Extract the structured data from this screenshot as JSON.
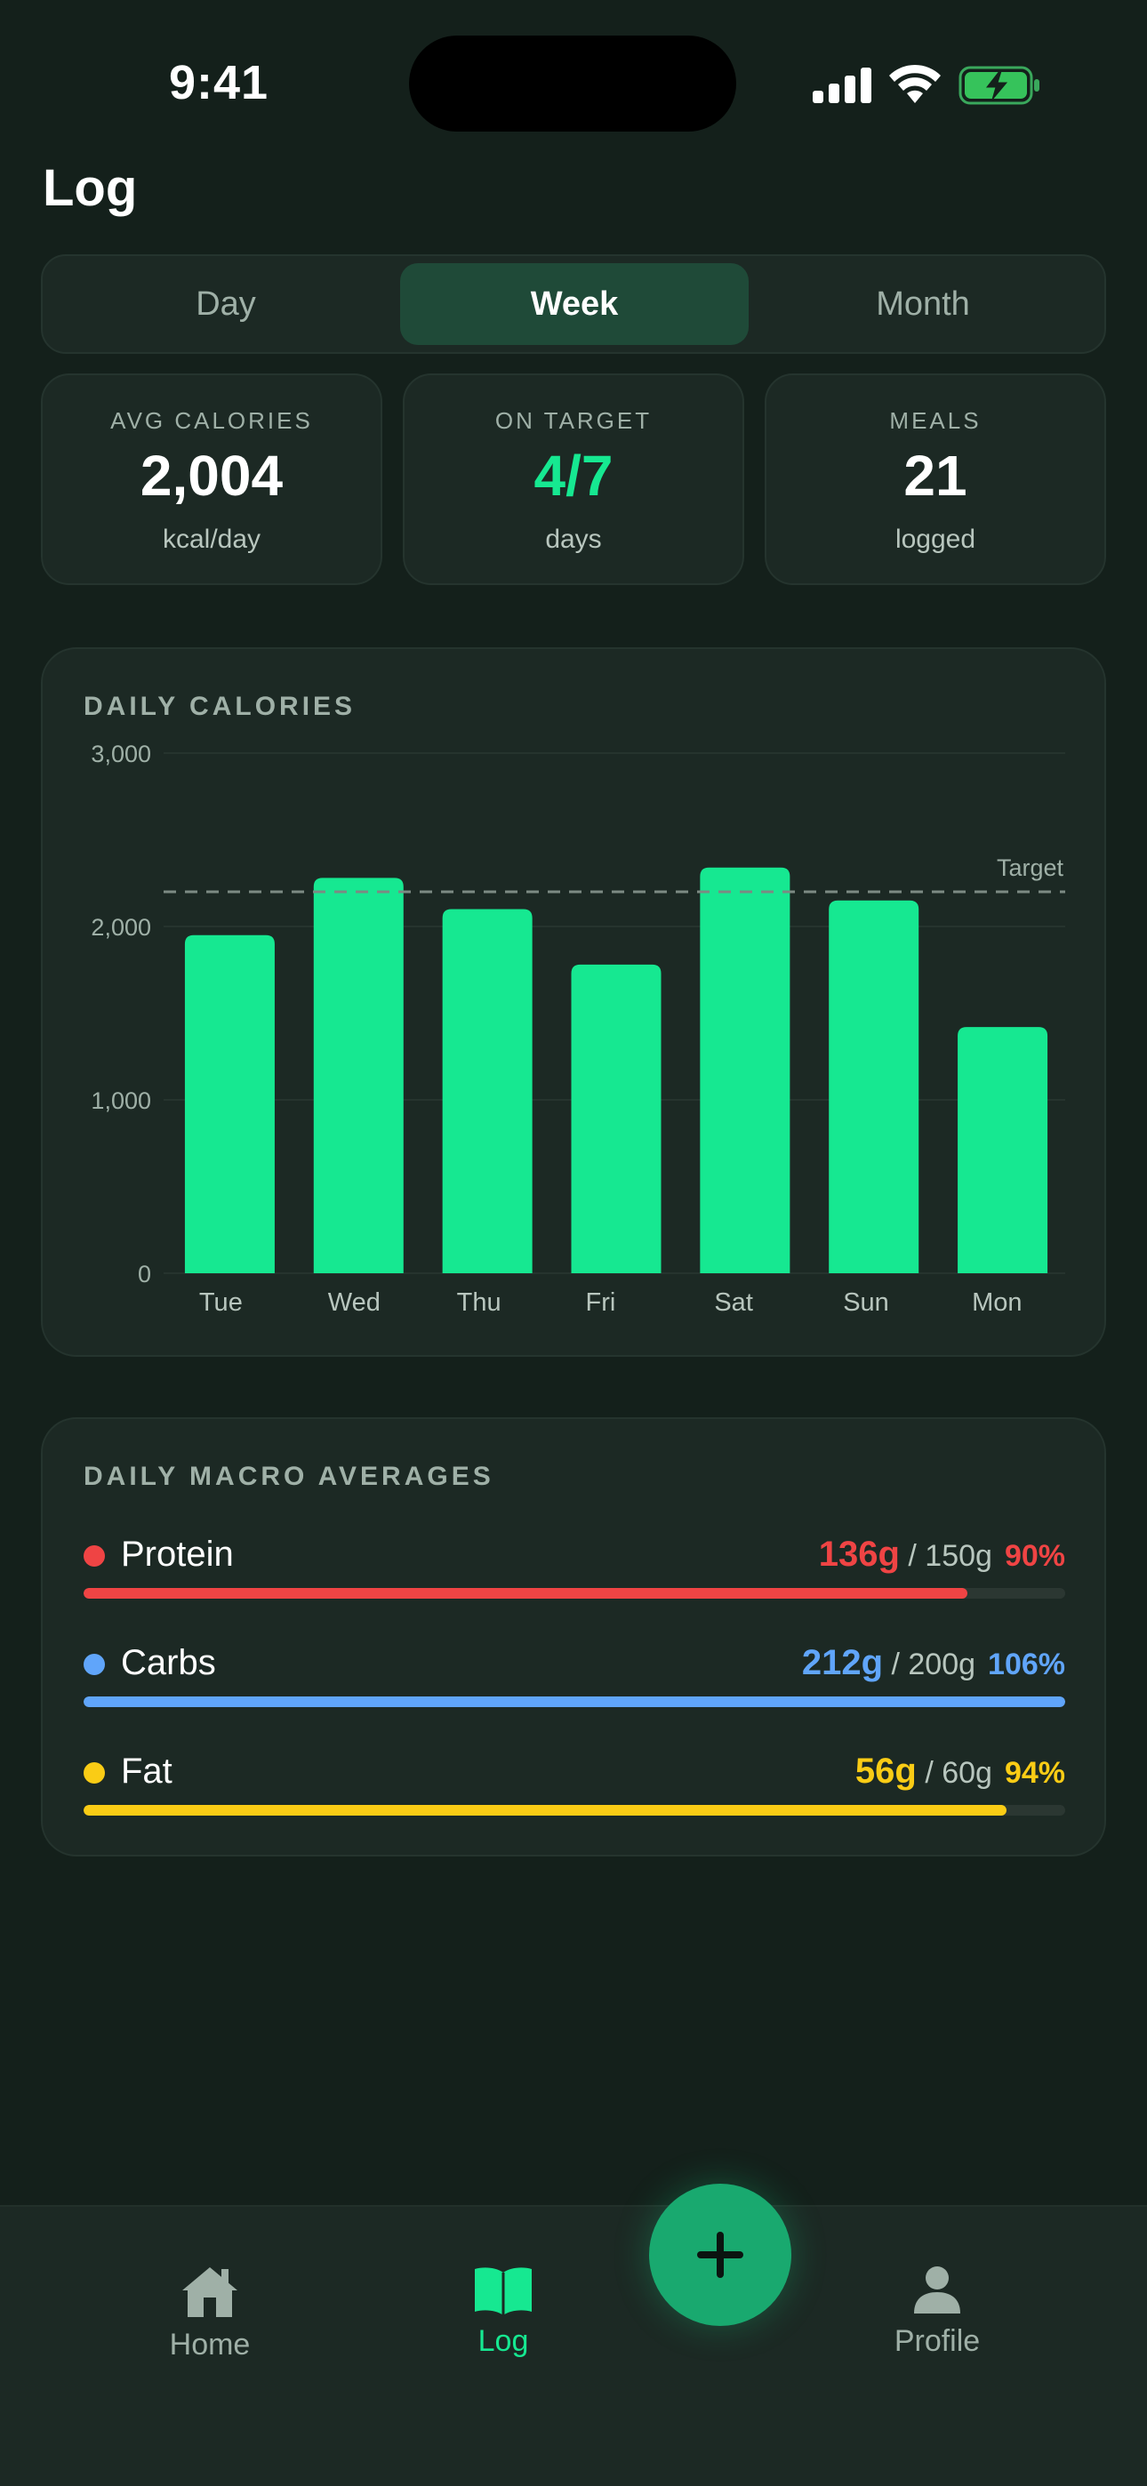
{
  "status": {
    "time": "9:41"
  },
  "header": {
    "title": "Log"
  },
  "segments": [
    "Day",
    "Week",
    "Month"
  ],
  "active_segment": "Week",
  "stats": [
    {
      "label": "AVG CALORIES",
      "value": "2,004",
      "unit": "kcal/day",
      "accent": false
    },
    {
      "label": "ON TARGET",
      "value": "4/7",
      "unit": "days",
      "accent": true
    },
    {
      "label": "MEALS",
      "value": "21",
      "unit": "logged",
      "accent": false
    }
  ],
  "chart_card": {
    "title": "DAILY CALORIES"
  },
  "chart_data": {
    "type": "bar",
    "categories": [
      "Tue",
      "Wed",
      "Thu",
      "Fri",
      "Sat",
      "Sun",
      "Mon"
    ],
    "values": [
      1950,
      2280,
      2100,
      1780,
      2340,
      2150,
      1420
    ],
    "ylim": [
      0,
      3000
    ],
    "yticks": [
      0,
      1000,
      2000,
      3000
    ],
    "ytick_labels": [
      "0",
      "1,000",
      "2,000",
      "3,000"
    ],
    "target": 2200,
    "target_label": "Target",
    "bar_color": "#16e891",
    "grid": true
  },
  "macros": {
    "title": "DAILY MACRO AVERAGES",
    "items": [
      {
        "name": "Protein",
        "current": "136g",
        "goal": "/ 150g",
        "percent": "90%",
        "fraction": 0.9,
        "color": "#ef4444"
      },
      {
        "name": "Carbs",
        "current": "212g",
        "goal": "/ 200g",
        "percent": "106%",
        "fraction": 1.0,
        "color": "#60a5fa"
      },
      {
        "name": "Fat",
        "current": "56g",
        "goal": "/ 60g",
        "percent": "94%",
        "fraction": 0.94,
        "color": "#facc15"
      }
    ]
  },
  "tabbar": {
    "items": [
      {
        "label": "Home",
        "icon": "home-icon",
        "active": false
      },
      {
        "label": "Log",
        "icon": "book-icon",
        "active": true
      },
      {
        "label": "Profile",
        "icon": "person-icon",
        "active": false
      }
    ],
    "fab_icon": "plus-icon"
  },
  "colors": {
    "accent": "#16e891",
    "background": "#14201b",
    "card": "#1c2924"
  }
}
